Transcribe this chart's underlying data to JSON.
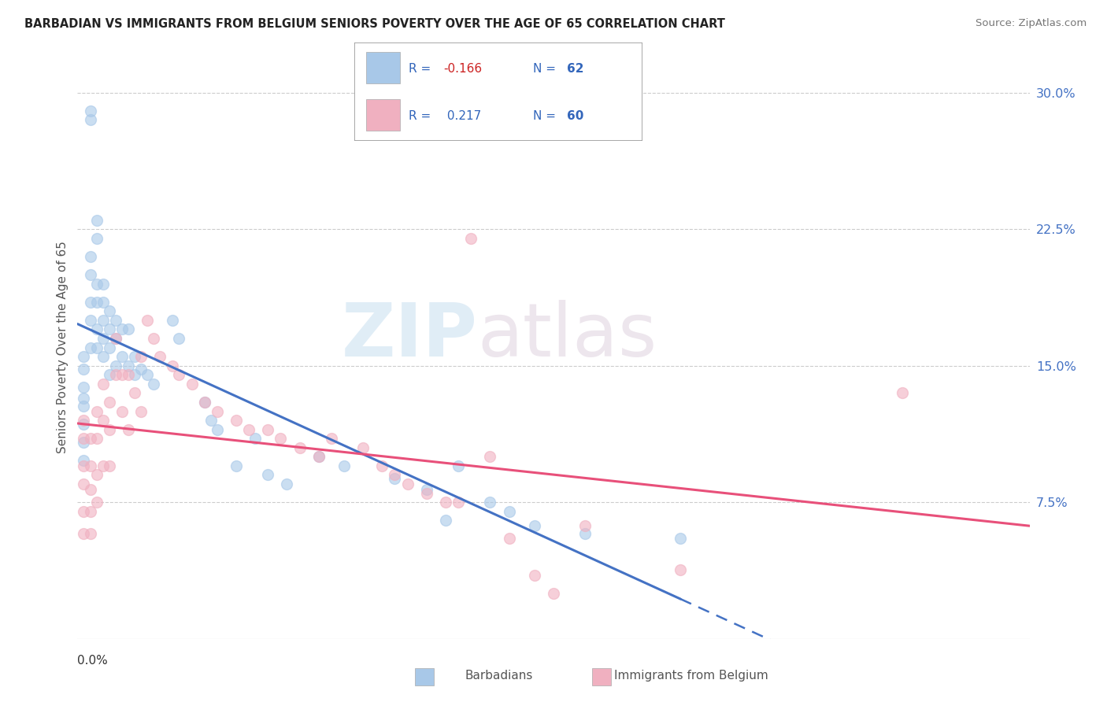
{
  "title": "BARBADIAN VS IMMIGRANTS FROM BELGIUM SENIORS POVERTY OVER THE AGE OF 65 CORRELATION CHART",
  "source": "Source: ZipAtlas.com",
  "ylabel": "Seniors Poverty Over the Age of 65",
  "xmin": 0.0,
  "xmax": 0.15,
  "ymin": 0.0,
  "ymax": 0.32,
  "yticks": [
    0.0,
    0.075,
    0.15,
    0.225,
    0.3
  ],
  "ytick_labels": [
    "",
    "7.5%",
    "15.0%",
    "22.5%",
    "30.0%"
  ],
  "blue_color": "#a8c8e8",
  "pink_color": "#f0b0c0",
  "blue_line_color": "#4472c4",
  "pink_line_color": "#e8507a",
  "watermark_zip": "ZIP",
  "watermark_atlas": "atlas",
  "blue_r": "-0.166",
  "blue_n": "62",
  "pink_r": "0.217",
  "pink_n": "60",
  "blue_x": [
    0.001,
    0.001,
    0.001,
    0.001,
    0.001,
    0.001,
    0.001,
    0.001,
    0.002,
    0.002,
    0.002,
    0.002,
    0.002,
    0.002,
    0.002,
    0.003,
    0.003,
    0.003,
    0.003,
    0.003,
    0.003,
    0.004,
    0.004,
    0.004,
    0.004,
    0.004,
    0.005,
    0.005,
    0.005,
    0.005,
    0.006,
    0.006,
    0.006,
    0.007,
    0.007,
    0.008,
    0.008,
    0.009,
    0.009,
    0.01,
    0.011,
    0.012,
    0.015,
    0.016,
    0.02,
    0.021,
    0.022,
    0.025,
    0.028,
    0.03,
    0.033,
    0.038,
    0.042,
    0.05,
    0.055,
    0.058,
    0.06,
    0.065,
    0.068,
    0.072,
    0.08,
    0.095
  ],
  "blue_y": [
    0.155,
    0.148,
    0.138,
    0.132,
    0.128,
    0.118,
    0.108,
    0.098,
    0.29,
    0.285,
    0.21,
    0.2,
    0.185,
    0.175,
    0.16,
    0.23,
    0.22,
    0.195,
    0.185,
    0.17,
    0.16,
    0.195,
    0.185,
    0.175,
    0.165,
    0.155,
    0.18,
    0.17,
    0.16,
    0.145,
    0.175,
    0.165,
    0.15,
    0.17,
    0.155,
    0.17,
    0.15,
    0.155,
    0.145,
    0.148,
    0.145,
    0.14,
    0.175,
    0.165,
    0.13,
    0.12,
    0.115,
    0.095,
    0.11,
    0.09,
    0.085,
    0.1,
    0.095,
    0.088,
    0.082,
    0.065,
    0.095,
    0.075,
    0.07,
    0.062,
    0.058,
    0.055
  ],
  "pink_x": [
    0.001,
    0.001,
    0.001,
    0.001,
    0.001,
    0.001,
    0.002,
    0.002,
    0.002,
    0.002,
    0.002,
    0.003,
    0.003,
    0.003,
    0.003,
    0.004,
    0.004,
    0.004,
    0.005,
    0.005,
    0.005,
    0.006,
    0.006,
    0.007,
    0.007,
    0.008,
    0.008,
    0.009,
    0.01,
    0.01,
    0.011,
    0.012,
    0.013,
    0.015,
    0.016,
    0.018,
    0.02,
    0.022,
    0.025,
    0.027,
    0.03,
    0.032,
    0.035,
    0.038,
    0.04,
    0.045,
    0.048,
    0.05,
    0.052,
    0.055,
    0.058,
    0.06,
    0.062,
    0.065,
    0.068,
    0.072,
    0.075,
    0.08,
    0.095,
    0.13
  ],
  "pink_y": [
    0.12,
    0.11,
    0.095,
    0.085,
    0.07,
    0.058,
    0.11,
    0.095,
    0.082,
    0.07,
    0.058,
    0.125,
    0.11,
    0.09,
    0.075,
    0.14,
    0.12,
    0.095,
    0.13,
    0.115,
    0.095,
    0.165,
    0.145,
    0.145,
    0.125,
    0.145,
    0.115,
    0.135,
    0.155,
    0.125,
    0.175,
    0.165,
    0.155,
    0.15,
    0.145,
    0.14,
    0.13,
    0.125,
    0.12,
    0.115,
    0.115,
    0.11,
    0.105,
    0.1,
    0.11,
    0.105,
    0.095,
    0.09,
    0.085,
    0.08,
    0.075,
    0.075,
    0.22,
    0.1,
    0.055,
    0.035,
    0.025,
    0.062,
    0.038,
    0.135
  ]
}
